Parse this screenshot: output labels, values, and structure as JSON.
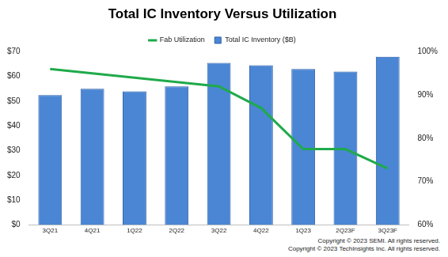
{
  "chart_data": {
    "type": "bar",
    "title": "Total IC Inventory Versus Utilization",
    "categories": [
      "3Q21",
      "4Q21",
      "1Q22",
      "2Q22",
      "3Q22",
      "4Q22",
      "1Q23",
      "2Q23F",
      "3Q23F"
    ],
    "series": [
      {
        "name": "Total IC Inventory ($B)",
        "type": "bar",
        "color": "#4a86d4",
        "values": [
          52.5,
          55,
          54,
          56,
          65.5,
          64.5,
          63,
          62,
          68
        ]
      },
      {
        "name": "Fab Utilization",
        "type": "line",
        "axis": "y2",
        "color": "#1faa4a",
        "marker": "none",
        "values": [
          96,
          95,
          94,
          93,
          92,
          87,
          77.5,
          77.5,
          73
        ]
      }
    ],
    "ylim": [
      0,
      70
    ],
    "yticks": [
      {
        "value": 0,
        "label": "$0"
      },
      {
        "value": 10,
        "label": "$10"
      },
      {
        "value": 20,
        "label": "$20"
      },
      {
        "value": 30,
        "label": "$30"
      },
      {
        "value": 40,
        "label": "$40"
      },
      {
        "value": 50,
        "label": "$50"
      },
      {
        "value": 60,
        "label": "$60"
      },
      {
        "value": 70,
        "label": "$70"
      }
    ],
    "y2lim": [
      60,
      100
    ],
    "y2ticks": [
      {
        "value": 60,
        "label": "60%"
      },
      {
        "value": 70,
        "label": "70%"
      },
      {
        "value": 80,
        "label": "80%"
      },
      {
        "value": 90,
        "label": "90%"
      },
      {
        "value": 100,
        "label": "100%"
      }
    ],
    "grid": false,
    "legend": "top",
    "notes": [
      "Copyright © 2023 SEMI.  All rights reserved.",
      "Copyright © 2023 TechInsights Inc.  All rights reserved."
    ]
  }
}
